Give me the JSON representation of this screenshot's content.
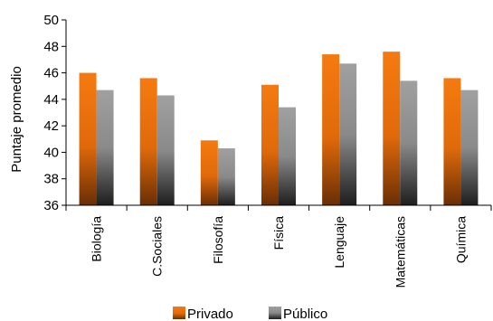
{
  "chart_data": {
    "type": "bar",
    "ylabel": "Puntaje promedio",
    "xlabel": "",
    "ylim": [
      36,
      50
    ],
    "yticks": [
      36,
      38,
      40,
      42,
      44,
      46,
      48,
      50
    ],
    "grid": false,
    "legend_position": "bottom",
    "categories": [
      "Biología",
      "C.Sociales",
      "Filosofía",
      "Física",
      "Lenguaje",
      "Matemáticas",
      "Química"
    ],
    "series": [
      {
        "name": "Privado",
        "color": "#f07818",
        "values": [
          46.0,
          45.6,
          40.9,
          45.1,
          47.4,
          47.6,
          45.6
        ]
      },
      {
        "name": "Público",
        "color": "#9a9a9a",
        "values": [
          44.7,
          44.3,
          40.3,
          43.4,
          46.7,
          45.4,
          44.7
        ]
      }
    ]
  }
}
